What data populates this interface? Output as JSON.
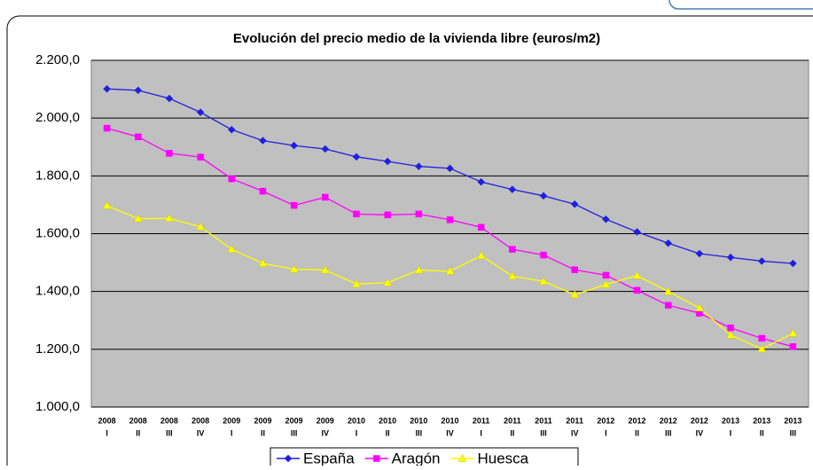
{
  "chart_data": {
    "type": "line",
    "title": "Evolución del precio medio de la vivienda libre (euros/m2)",
    "categories": [
      [
        "2008",
        "I"
      ],
      [
        "2008",
        "II"
      ],
      [
        "2008",
        "III"
      ],
      [
        "2008",
        "IV"
      ],
      [
        "2009",
        "I"
      ],
      [
        "2009",
        "II"
      ],
      [
        "2009",
        "III"
      ],
      [
        "2009",
        "IV"
      ],
      [
        "2010",
        "I"
      ],
      [
        "2010",
        "II"
      ],
      [
        "2010",
        "III"
      ],
      [
        "2010",
        "IV"
      ],
      [
        "2011",
        "I"
      ],
      [
        "2011",
        "II"
      ],
      [
        "2011",
        "III"
      ],
      [
        "2011",
        "IV"
      ],
      [
        "2012",
        "I"
      ],
      [
        "2012",
        "II"
      ],
      [
        "2012",
        "III"
      ],
      [
        "2012",
        "IV"
      ],
      [
        "2013",
        "I"
      ],
      [
        "2013",
        "II"
      ],
      [
        "2013",
        "III"
      ]
    ],
    "series": [
      {
        "name": "España",
        "color": "#1f1fe0",
        "marker": "diamond",
        "values": [
          2101,
          2096,
          2068,
          2020,
          1960,
          1922,
          1905,
          1893,
          1866,
          1850,
          1833,
          1826,
          1779,
          1753,
          1731,
          1702,
          1650,
          1606,
          1567,
          1531,
          1518,
          1505,
          1497
        ]
      },
      {
        "name": "Aragón",
        "color": "#ff00ff",
        "marker": "square",
        "values": [
          1965,
          1935,
          1878,
          1865,
          1790,
          1747,
          1698,
          1726,
          1668,
          1665,
          1668,
          1648,
          1622,
          1546,
          1526,
          1475,
          1456,
          1404,
          1352,
          1325,
          1274,
          1238,
          1209
        ]
      },
      {
        "name": "Huesca",
        "color": "#ffff00",
        "marker": "triangle",
        "values": [
          1697,
          1652,
          1653,
          1624,
          1546,
          1497,
          1477,
          1474,
          1426,
          1430,
          1474,
          1470,
          1524,
          1453,
          1435,
          1389,
          1424,
          1455,
          1400,
          1343,
          1249,
          1201,
          1255
        ]
      }
    ],
    "ylim": [
      1000,
      2200
    ],
    "yticks": [
      {
        "value": 1000,
        "label": "1.000,0"
      },
      {
        "value": 1200,
        "label": "1.200,0"
      },
      {
        "value": 1400,
        "label": "1.400,0"
      },
      {
        "value": 1600,
        "label": "1.600,0"
      },
      {
        "value": 1800,
        "label": "1.800,0"
      },
      {
        "value": 2000,
        "label": "2.000,0"
      },
      {
        "value": 2200,
        "label": "2.200,0"
      }
    ],
    "grid": true,
    "legend": "bottom"
  }
}
